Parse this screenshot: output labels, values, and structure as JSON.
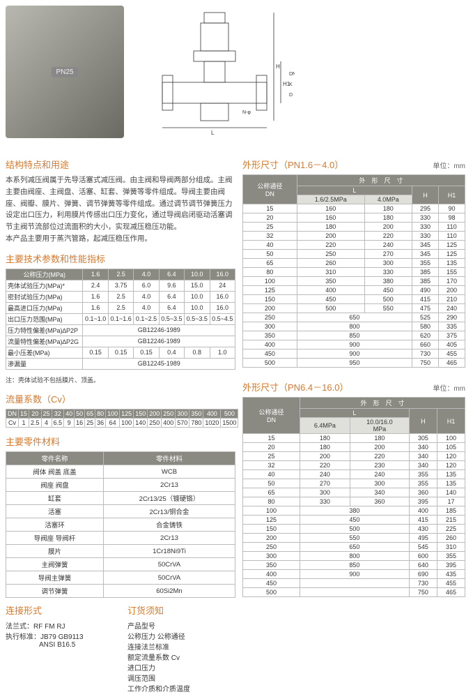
{
  "headings": {
    "structure": "结构特点和用途",
    "tech_params": "主要技术参数和性能指标",
    "flow_coef": "流量系数（Cv）",
    "materials": "主要零件材料",
    "connection": "连接形式",
    "order_info": "订货须知",
    "dim1_prefix": "外形尺寸（PN1.6－4.0）",
    "dim2_prefix": "外形尺寸（PN6.4－16.0）",
    "unit_label": "单位：mm"
  },
  "description": "本系列减压阀属于先导活塞式减压阀。由主阀和导阀两部分组成。主阀主要由阀座、主阀盘、活塞、缸套、弹簧等零件组成。导阀主要由阀座、阀瓣、膜片、弹簧、调节弹簧等零件组成。通过调节调节弹簧压力设定出口压力，利用膜片传感出口压力变化，通过导阀启闭驱动活塞调节主阀节流部位过流面积的大小，实现减压稳压功能。",
  "description2": "本产品主要用于蒸汽管路，起减压稳压作用。",
  "tech_params": {
    "header_label": "公称压力(MPa)",
    "pressures": [
      "1.6",
      "2.5",
      "4.0",
      "6.4",
      "10.0",
      "16.0"
    ],
    "rows": [
      {
        "label": "壳体试验压力(MPa)*",
        "vals": [
          "2.4",
          "3.75",
          "6.0",
          "9.6",
          "15.0",
          "24"
        ]
      },
      {
        "label": "密封试验压力(MPa)",
        "vals": [
          "1.6",
          "2.5",
          "4.0",
          "6.4",
          "10.0",
          "16.0"
        ]
      },
      {
        "label": "最高进口压力(MPa)",
        "vals": [
          "1.6",
          "2.5",
          "4.0",
          "6.4",
          "10.0",
          "16.0"
        ]
      },
      {
        "label": "出口压力范围(MPa)",
        "vals": [
          "0.1~1.0",
          "0.1~1.6",
          "0.1~2.5",
          "0.5~3.5",
          "0.5~3.5",
          "0.5~4.5"
        ]
      },
      {
        "label": "压力特性偏差(MPa)∆P2P",
        "vals_merged": "GB12246-1989"
      },
      {
        "label": "流量特性偏差(MPa)∆P2G",
        "vals_merged": "GB12246-1989"
      },
      {
        "label": "最小压差(MPa)",
        "vals": [
          "0.15",
          "0.15",
          "0.15",
          "0.4",
          "0.8",
          "1.0"
        ]
      },
      {
        "label": "渗漏量",
        "vals_merged": "GB12245-1989"
      }
    ],
    "footnote": "注：壳体试验不包括膜片、顶盖。"
  },
  "flow_coef": {
    "dn_label": "DN",
    "cv_label": "Cv",
    "dn": [
      "15",
      "20",
      "25",
      "32",
      "40",
      "50",
      "65",
      "80",
      "100",
      "125",
      "150",
      "200",
      "250",
      "300",
      "350",
      "400",
      "500"
    ],
    "cv": [
      "1",
      "2.5",
      "4",
      "6.5",
      "9",
      "16",
      "25",
      "36",
      "64",
      "100",
      "140",
      "250",
      "400",
      "570",
      "780",
      "1020",
      "1500"
    ]
  },
  "materials": {
    "col1": "零件名称",
    "col2": "零件材料",
    "rows": [
      [
        "阀体 阀盖 底盖",
        "WCB"
      ],
      [
        "阀座 阀盘",
        "2Cr13"
      ],
      [
        "缸套",
        "2Cr13/25（镀硬铬）"
      ],
      [
        "活塞",
        "2Cr13/铜合金"
      ],
      [
        "活塞环",
        "合金铸铁"
      ],
      [
        "导阀座 导阀杆",
        "2Cr13"
      ],
      [
        "膜片",
        "1Cr18Ni9Ti"
      ],
      [
        "主阀弹簧",
        "50CrVA"
      ],
      [
        "导阀主弹簧",
        "50CrVA"
      ],
      [
        "调节弹簧",
        "60Si2Mn"
      ]
    ]
  },
  "connection": {
    "flange_label": "法兰式：",
    "flange_types": "RF  FM  RJ",
    "std_label": "执行标准：",
    "std_vals": "JB79   GB9113",
    "std_vals2": "ANSI   B16.5"
  },
  "order_info": {
    "items": [
      "产品型号",
      "公称压力  公称通径",
      "连接法兰标准",
      "额定流量系数 Cv",
      "进口压力",
      "调压范围",
      "工作介质和介质温度"
    ]
  },
  "dim1": {
    "dn_label": "公称通径\nDN",
    "top_header": "外　形　尺　寸",
    "sub_headers": [
      "L",
      "H",
      "H1"
    ],
    "sub_sub": [
      "1.6/2.5MPa",
      "4.0MPa"
    ],
    "rows": [
      [
        "15",
        "160",
        "180",
        "295",
        "90"
      ],
      [
        "20",
        "160",
        "180",
        "330",
        "98"
      ],
      [
        "25",
        "180",
        "200",
        "330",
        "110"
      ],
      [
        "32",
        "200",
        "220",
        "330",
        "110"
      ],
      [
        "40",
        "220",
        "240",
        "345",
        "125"
      ],
      [
        "50",
        "250",
        "270",
        "345",
        "125"
      ],
      [
        "65",
        "260",
        "300",
        "355",
        "135"
      ],
      [
        "80",
        "310",
        "330",
        "385",
        "155"
      ],
      [
        "100",
        "350",
        "380",
        "385",
        "170"
      ],
      [
        "125",
        "400",
        "450",
        "490",
        "200"
      ],
      [
        "150",
        "450",
        "500",
        "415",
        "210"
      ],
      [
        "200",
        "500",
        "550",
        "475",
        "240"
      ],
      [
        "250",
        "650",
        "",
        "525",
        "290"
      ],
      [
        "300",
        "800",
        "",
        "580",
        "335"
      ],
      [
        "350",
        "850",
        "",
        "620",
        "375"
      ],
      [
        "400",
        "900",
        "",
        "660",
        "405"
      ],
      [
        "450",
        "900",
        "",
        "730",
        "455"
      ],
      [
        "500",
        "950",
        "",
        "750",
        "465"
      ]
    ]
  },
  "dim2": {
    "dn_label": "公称通径\nDN",
    "top_header": "外　形　尺　寸",
    "sub_headers": [
      "L",
      "H",
      "H1"
    ],
    "sub_sub": [
      "6.4MPa",
      "10.0/16.0\nMPa"
    ],
    "rows": [
      [
        "15",
        "180",
        "180",
        "305",
        "100"
      ],
      [
        "20",
        "180",
        "200",
        "340",
        "105"
      ],
      [
        "25",
        "200",
        "220",
        "340",
        "120"
      ],
      [
        "32",
        "220",
        "230",
        "340",
        "120"
      ],
      [
        "40",
        "240",
        "240",
        "355",
        "135"
      ],
      [
        "50",
        "270",
        "300",
        "355",
        "135"
      ],
      [
        "65",
        "300",
        "340",
        "360",
        "140"
      ],
      [
        "80",
        "330",
        "360",
        "395",
        "17"
      ],
      [
        "100",
        "380",
        "",
        "400",
        "185"
      ],
      [
        "125",
        "450",
        "",
        "415",
        "215"
      ],
      [
        "150",
        "500",
        "",
        "430",
        "225"
      ],
      [
        "200",
        "550",
        "",
        "495",
        "260"
      ],
      [
        "250",
        "650",
        "",
        "545",
        "310"
      ],
      [
        "300",
        "800",
        "",
        "600",
        "355"
      ],
      [
        "350",
        "850",
        "",
        "640",
        "395"
      ],
      [
        "400",
        "900",
        "",
        "690",
        "435"
      ],
      [
        "450",
        "",
        "",
        "730",
        "455"
      ],
      [
        "500",
        "",
        "",
        "750",
        "465"
      ]
    ]
  }
}
